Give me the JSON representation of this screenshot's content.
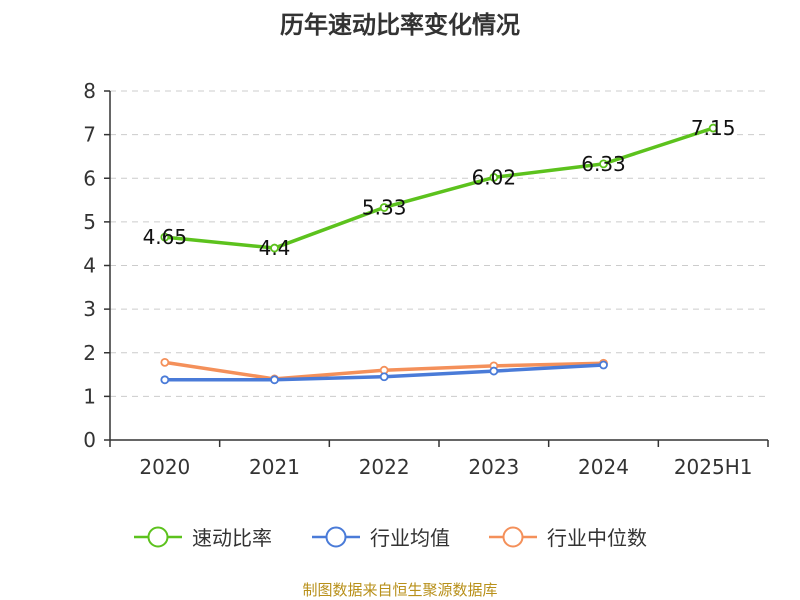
{
  "chart_data": {
    "type": "line",
    "title": "历年速动比率变化情况",
    "categories": [
      "2020",
      "2021",
      "2022",
      "2023",
      "2024",
      "2025H1"
    ],
    "ylim": [
      0,
      8
    ],
    "yticks": [
      "0",
      "1",
      "2",
      "3",
      "4",
      "5",
      "6",
      "7",
      "8"
    ],
    "grid": true,
    "legend_position": "bottom",
    "series": [
      {
        "name": "速动比率",
        "color": "#5cc21d",
        "values": [
          4.65,
          4.4,
          5.33,
          6.02,
          6.33,
          7.15
        ],
        "labels": [
          "4.65",
          "4.4",
          "5.33",
          "6.02",
          "6.33",
          "7.15"
        ]
      },
      {
        "name": "行业均值",
        "color": "#4a7bd8",
        "values": [
          1.38,
          1.38,
          1.45,
          1.58,
          1.72,
          null
        ]
      },
      {
        "name": "行业中位数",
        "color": "#f4905a",
        "values": [
          1.78,
          1.4,
          1.6,
          1.7,
          1.76,
          null
        ]
      }
    ],
    "source": "制图数据来自恒生聚源数据库"
  }
}
